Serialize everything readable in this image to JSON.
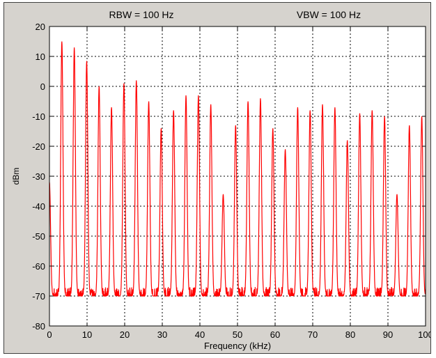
{
  "chart_data": {
    "type": "line",
    "annotations": [
      "RBW = 100 Hz",
      "VBW = 100 Hz"
    ],
    "xlabel": "Frequency (kHz)",
    "ylabel": "dBm",
    "xlim": [
      0,
      100
    ],
    "ylim": [
      -80,
      20
    ],
    "x_ticks": [
      0,
      10,
      20,
      30,
      40,
      50,
      60,
      70,
      80,
      90,
      100
    ],
    "y_ticks": [
      20,
      10,
      0,
      -10,
      -20,
      -30,
      -40,
      -50,
      -60,
      -70,
      -80
    ],
    "grid": true,
    "line_color": "#ff0000",
    "noise_floor_dbm": -70,
    "series": [
      {
        "values": [
          [
            0.0,
            -32
          ],
          [
            3.3,
            15
          ],
          [
            6.6,
            13
          ],
          [
            9.9,
            8.5
          ],
          [
            13.2,
            0
          ],
          [
            16.5,
            -7
          ],
          [
            19.8,
            1
          ],
          [
            23.1,
            2
          ],
          [
            26.4,
            -5
          ],
          [
            29.7,
            -14
          ],
          [
            33.0,
            -8
          ],
          [
            36.3,
            -3
          ],
          [
            39.6,
            -3
          ],
          [
            42.9,
            -6
          ],
          [
            46.2,
            -36
          ],
          [
            49.5,
            -13
          ],
          [
            52.8,
            -5
          ],
          [
            56.1,
            -4
          ],
          [
            59.4,
            -14
          ],
          [
            62.7,
            -21
          ],
          [
            66.0,
            -7
          ],
          [
            69.3,
            -8
          ],
          [
            72.6,
            -6
          ],
          [
            75.9,
            -7
          ],
          [
            79.2,
            -18
          ],
          [
            82.5,
            -9
          ],
          [
            85.8,
            -8
          ],
          [
            89.1,
            -10
          ],
          [
            92.4,
            -36
          ],
          [
            95.7,
            -13
          ],
          [
            99.0,
            -10
          ]
        ]
      }
    ]
  }
}
